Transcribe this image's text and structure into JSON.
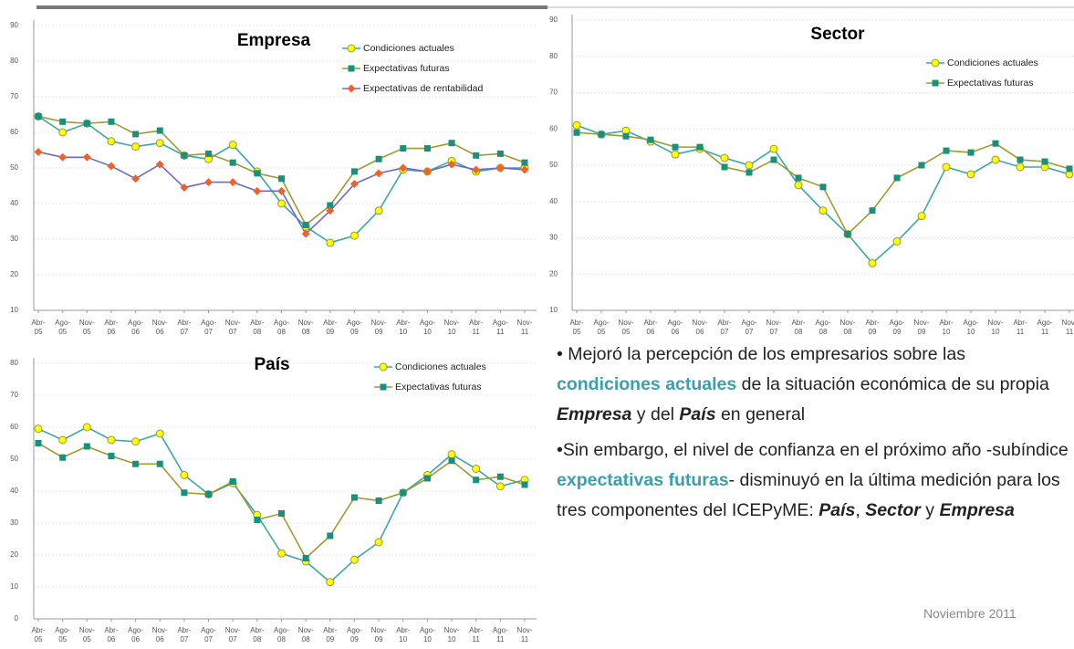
{
  "chart_data": [
    {
      "type": "line",
      "title": "Empresa",
      "categories": [
        "Abr-05",
        "Ago-05",
        "Nov-05",
        "Abr-06",
        "Ago-06",
        "Nov-06",
        "Abr-07",
        "Ago-07",
        "Nov-07",
        "Abr-08",
        "Ago-08",
        "Nov-08",
        "Abr-09",
        "Ago-09",
        "Nov-09",
        "Abr-10",
        "Ago-10",
        "Nov-10",
        "Abr-11",
        "Ago-11",
        "Nov-11"
      ],
      "ylim": [
        10,
        90
      ],
      "yticks": [
        10,
        20,
        30,
        40,
        50,
        60,
        70,
        80,
        90
      ],
      "grid": true,
      "series": [
        {
          "name": "Condiciones actuales",
          "color": "#3aa8a8",
          "marker": "circle",
          "marker_color": "#ffff00",
          "values": [
            64.5,
            60,
            62.5,
            57.5,
            56,
            57,
            53.5,
            52.5,
            56.5,
            49,
            40,
            33.5,
            29,
            31,
            38,
            49.5,
            49,
            52,
            49,
            50,
            50
          ]
        },
        {
          "name": "Expectativas futuras",
          "color": "#a09a30",
          "marker": "square",
          "marker_color": "#17907e",
          "values": [
            64.5,
            63,
            62.5,
            63,
            59.5,
            60.5,
            53.5,
            54,
            51.5,
            48.5,
            47,
            34,
            39.5,
            49,
            52.5,
            55.5,
            55.5,
            57,
            53.5,
            54,
            51.5
          ]
        },
        {
          "name": "Expectativas de rentabilidad",
          "color": "#6a6acc",
          "marker": "diamond",
          "marker_color": "#f0622a",
          "values": [
            54.5,
            53,
            53,
            50.5,
            47,
            51,
            44.5,
            46,
            46,
            43.5,
            43.5,
            31.5,
            38,
            45.5,
            48.5,
            50,
            49,
            51,
            49.5,
            50,
            49.5
          ]
        }
      ]
    },
    {
      "type": "line",
      "title": "Sector",
      "categories": [
        "Abr-05",
        "Ago-05",
        "Nov-05",
        "Abr-06",
        "Ago-06",
        "Nov-06",
        "Abr-07",
        "Ago-07",
        "Nov-07",
        "Abr-08",
        "Ago-08",
        "Nov-08",
        "Abr-09",
        "Ago-09",
        "Nov-09",
        "Abr-10",
        "Ago-10",
        "Nov-10",
        "Abr-11",
        "Ago-11",
        "Nov-11"
      ],
      "ylim": [
        10,
        90
      ],
      "yticks": [
        10,
        20,
        30,
        40,
        50,
        60,
        70,
        80,
        90
      ],
      "grid": true,
      "series": [
        {
          "name": "Condiciones actuales",
          "color": "#3aa8a8",
          "marker": "circle",
          "marker_color": "#ffff00",
          "values": [
            61,
            58.5,
            59.5,
            56.5,
            53,
            54.5,
            52,
            50,
            54.5,
            44.5,
            37.5,
            31,
            23,
            29,
            36,
            49.5,
            47.5,
            51.5,
            49.5,
            49.5,
            47.5
          ]
        },
        {
          "name": "Expectativas futuras",
          "color": "#a09a30",
          "marker": "square",
          "marker_color": "#17907e",
          "values": [
            59,
            58.5,
            58,
            57,
            55,
            55,
            49.5,
            48,
            51.5,
            46.5,
            44,
            31,
            37.5,
            46.5,
            50,
            54,
            53.5,
            56,
            51.5,
            51,
            49
          ]
        }
      ]
    },
    {
      "type": "line",
      "title": "País",
      "categories": [
        "Abr-05",
        "Ago-05",
        "Nov-05",
        "Abr-06",
        "Ago-06",
        "Nov-06",
        "Abr-07",
        "Ago-07",
        "Nov-07",
        "Abr-08",
        "Ago-08",
        "Nov-08",
        "Abr-09",
        "Ago-09",
        "Nov-09",
        "Abr-10",
        "Ago-10",
        "Nov-10",
        "Abr-11",
        "Ago-11",
        "Nov-11"
      ],
      "ylim": [
        0,
        80
      ],
      "yticks": [
        0,
        10,
        20,
        30,
        40,
        50,
        60,
        70,
        80
      ],
      "grid": true,
      "series": [
        {
          "name": "Condiciones actuales",
          "color": "#3aa8a8",
          "marker": "circle",
          "marker_color": "#ffff00",
          "values": [
            59.5,
            56,
            60,
            56,
            55.5,
            58,
            45,
            39,
            42.5,
            32.5,
            20.5,
            18,
            11.5,
            18.5,
            24,
            39.5,
            45,
            51.5,
            47,
            41.5,
            43.5
          ]
        },
        {
          "name": "Expectativas futuras",
          "color": "#a09a30",
          "marker": "square",
          "marker_color": "#17907e",
          "values": [
            55,
            50.5,
            54,
            51,
            48.5,
            48.5,
            39.5,
            39,
            43,
            31,
            33,
            19,
            26,
            38,
            37,
            39.5,
            44,
            49.5,
            43.5,
            44.5,
            42
          ]
        }
      ]
    }
  ],
  "text": {
    "paragraphs": [
      [
        {
          "text": "• Mejoró la percepción de los empresarios sobre las ",
          "style": "normal"
        },
        {
          "text": "condiciones actuales",
          "style": "teal"
        },
        {
          "text": " de la situación económica de su propia ",
          "style": "normal"
        },
        {
          "text": "Empresa",
          "style": "bold-italic"
        },
        {
          "text": " y del ",
          "style": "normal"
        },
        {
          "text": "País",
          "style": "bold-italic"
        },
        {
          "text": " en general",
          "style": "normal"
        }
      ],
      [
        {
          "text": "•Sin embargo, el nivel de confianza en el próximo año -subíndice ",
          "style": "normal"
        },
        {
          "text": "expectativas futuras",
          "style": "teal"
        },
        {
          "text": "- disminuyó en la última medición para los tres componentes del ICEPyME: ",
          "style": "normal"
        },
        {
          "text": "País",
          "style": "bold-italic"
        },
        {
          "text": ", ",
          "style": "normal"
        },
        {
          "text": "Sector",
          "style": "bold-italic"
        },
        {
          "text": " y ",
          "style": "normal"
        },
        {
          "text": "Empresa",
          "style": "bold-italic"
        }
      ]
    ],
    "footer": "Noviembre 2011"
  }
}
